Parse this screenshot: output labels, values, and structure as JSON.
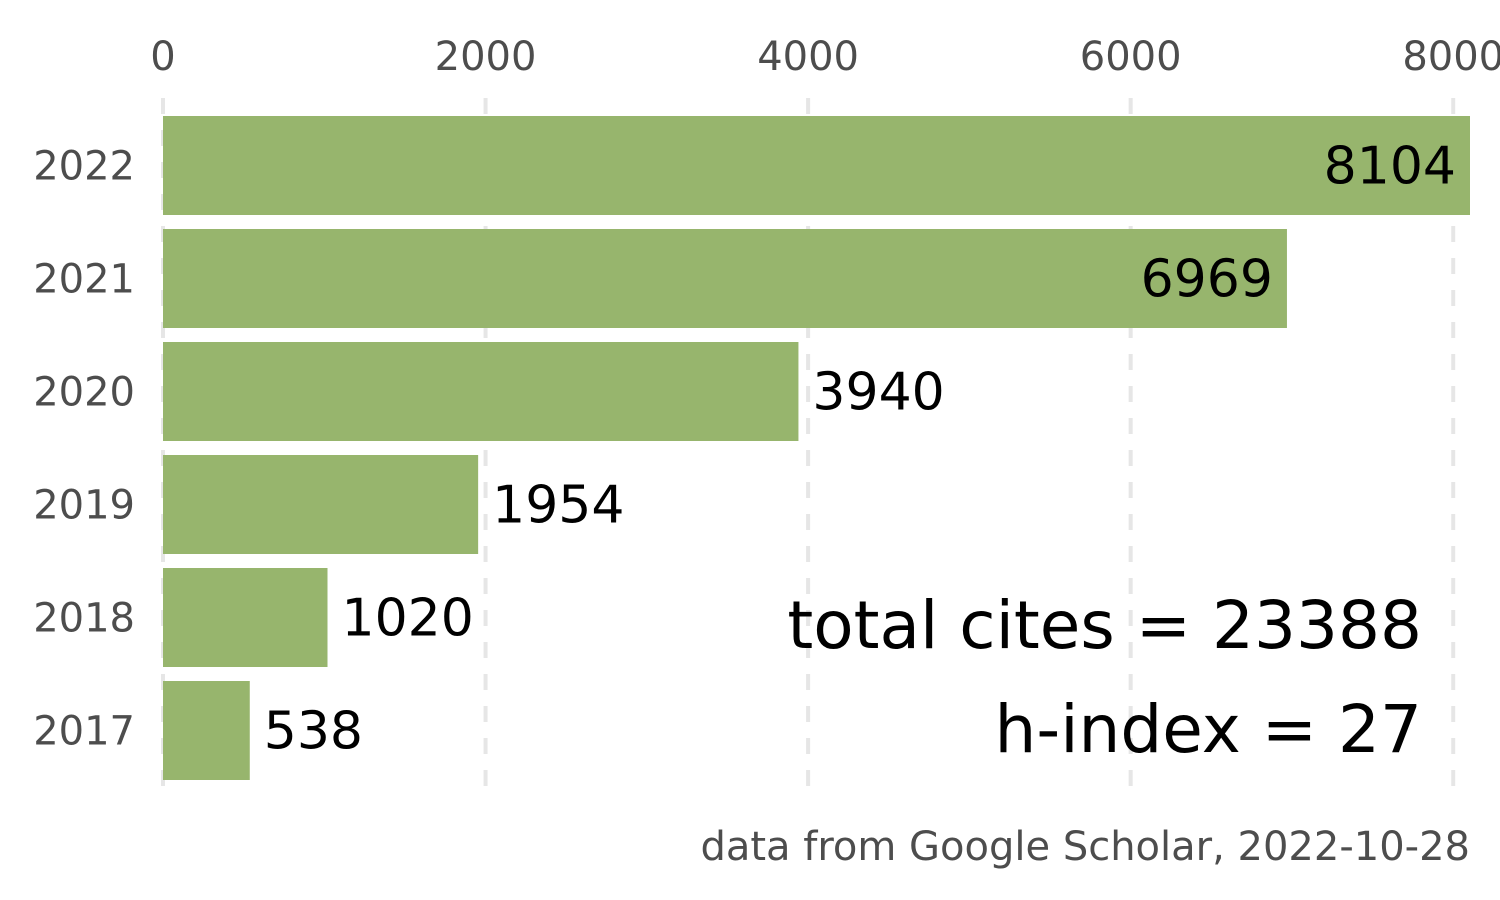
{
  "chart_data": {
    "type": "bar",
    "orientation": "horizontal",
    "categories": [
      "2022",
      "2021",
      "2020",
      "2019",
      "2018",
      "2017"
    ],
    "values": [
      8104,
      6969,
      3940,
      1954,
      1020,
      538
    ],
    "value_labels": [
      "8104",
      "6969",
      "3940",
      "1954",
      "1020",
      "538"
    ],
    "x_ticks": [
      "0",
      "2000",
      "4000",
      "6000",
      "8000"
    ],
    "x_tick_values": [
      0,
      2000,
      4000,
      6000,
      8000
    ],
    "x_axis_position": "top",
    "xlim": [
      0,
      8104
    ],
    "title": "",
    "xlabel": "",
    "ylabel": "",
    "grid": "vertical dashed",
    "legend": "none",
    "bar_color": "#97b56d",
    "annotations": {
      "total_cites": "total cites = 23388",
      "h_index": "h-index = 27"
    },
    "caption": "data from Google Scholar, 2022-10-28"
  }
}
